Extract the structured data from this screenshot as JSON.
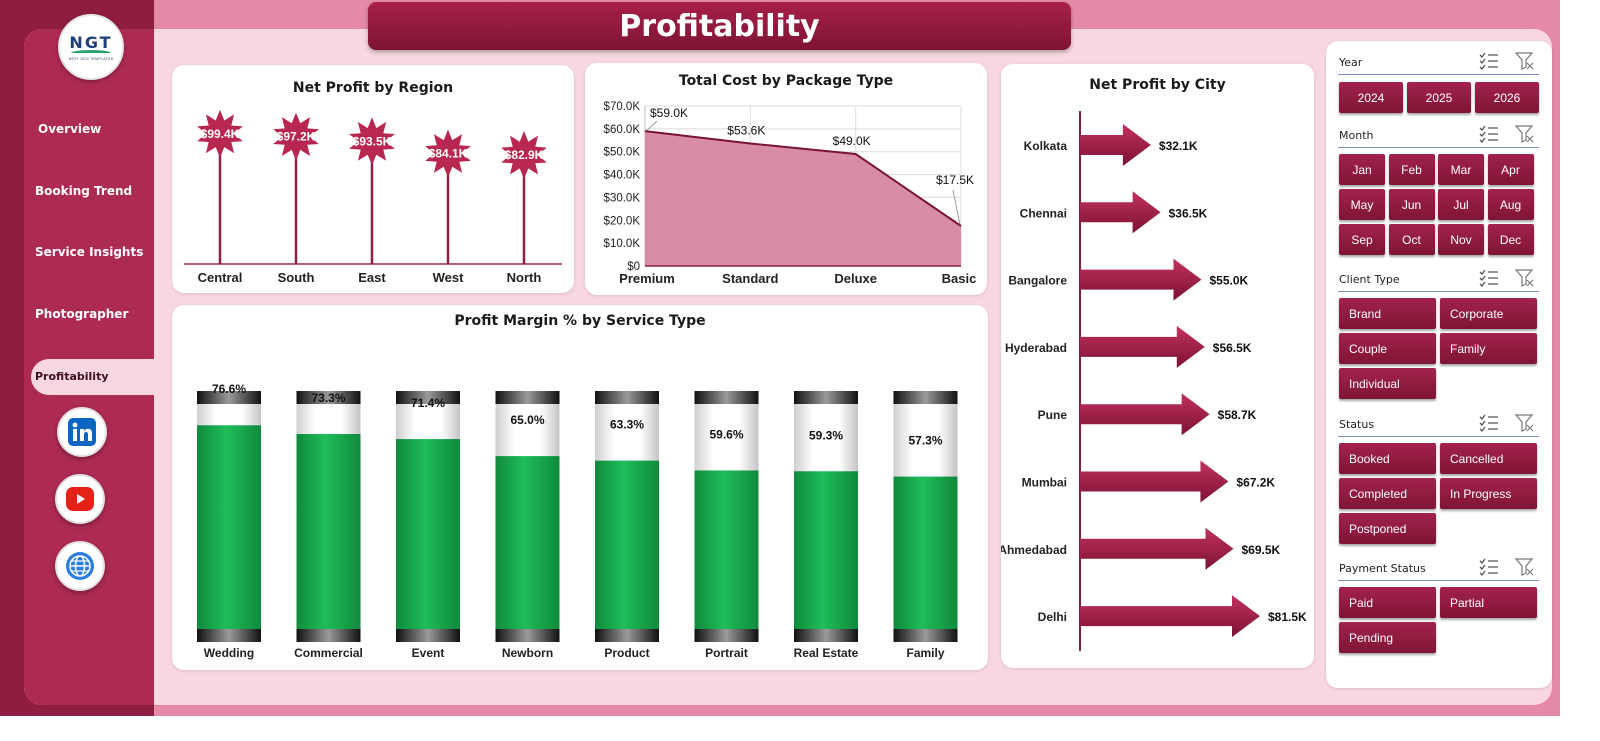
{
  "page_title": "Profitability",
  "logo": {
    "text": "NGT",
    "subtext": "NEXT GEN TEMPLATES"
  },
  "nav": {
    "items": [
      "Overview",
      "Booking Trend",
      "Service Insights",
      "Photographer"
    ],
    "active": "Profitability"
  },
  "social": [
    "linkedin-icon",
    "youtube-icon",
    "globe-icon"
  ],
  "colors": {
    "brand": "#a82049",
    "accent_green": "#16a74a",
    "panel_bg": "#f9d7e1"
  },
  "filters": {
    "year": {
      "title": "Year",
      "options": [
        "2024",
        "2025",
        "2026"
      ]
    },
    "month": {
      "title": "Month",
      "options": [
        "Jan",
        "Feb",
        "Mar",
        "Apr",
        "May",
        "Jun",
        "Jul",
        "Aug",
        "Sep",
        "Oct",
        "Nov",
        "Dec"
      ]
    },
    "client_type": {
      "title": "Client Type",
      "options": [
        "Brand",
        "Corporate",
        "Couple",
        "Family",
        "Individual"
      ]
    },
    "status": {
      "title": "Status",
      "options": [
        "Booked",
        "Cancelled",
        "Completed",
        "In Progress",
        "Postponed"
      ]
    },
    "payment_status": {
      "title": "Payment Status",
      "options": [
        "Paid",
        "Partial",
        "Pending"
      ]
    }
  },
  "chart_data": [
    {
      "id": "region",
      "type": "bar",
      "title": "Net Profit by Region",
      "categories": [
        "Central",
        "South",
        "East",
        "West",
        "North"
      ],
      "values": [
        99.4,
        97.2,
        93.5,
        84.1,
        82.9
      ],
      "labels": [
        "$99.4K",
        "$97.2K",
        "$93.5K",
        "$84.1K",
        "$82.9K"
      ],
      "unit": "K$"
    },
    {
      "id": "package",
      "type": "area",
      "title": "Total Cost by Package Type",
      "categories": [
        "Premium",
        "Standard",
        "Deluxe",
        "Basic"
      ],
      "values": [
        59.0,
        53.6,
        49.0,
        17.5
      ],
      "labels": [
        "$59.0K",
        "$53.6K",
        "$49.0K",
        "$17.5K"
      ],
      "y_ticks": [
        "$0",
        "$10.0K",
        "$20.0K",
        "$30.0K",
        "$40.0K",
        "$50.0K",
        "$60.0K",
        "$70.0K"
      ],
      "ylim": [
        0,
        70
      ],
      "grid": true
    },
    {
      "id": "city",
      "type": "bar",
      "orientation": "horizontal",
      "title": "Net Profit by City",
      "categories": [
        "Kolkata",
        "Chennai",
        "Bangalore",
        "Hyderabad",
        "Pune",
        "Mumbai",
        "Ahmedabad",
        "Delhi"
      ],
      "values": [
        32.1,
        36.5,
        55.0,
        56.5,
        58.7,
        67.2,
        69.5,
        81.5
      ],
      "labels": [
        "$32.1K",
        "$36.5K",
        "$55.0K",
        "$56.5K",
        "$58.7K",
        "$67.2K",
        "$69.5K",
        "$81.5K"
      ]
    },
    {
      "id": "margin",
      "type": "bar",
      "title": "Profit Margin % by Service Type",
      "categories": [
        "Wedding",
        "Commercial",
        "Event",
        "Newborn",
        "Product",
        "Portrait",
        "Real Estate",
        "Family"
      ],
      "values": [
        76.6,
        73.3,
        71.4,
        65.0,
        63.3,
        59.6,
        59.3,
        57.3
      ],
      "labels": [
        "76.6%",
        "73.3%",
        "71.4%",
        "65.0%",
        "63.3%",
        "59.6%",
        "59.3%",
        "57.3%"
      ],
      "ylim": [
        0,
        100
      ]
    }
  ]
}
